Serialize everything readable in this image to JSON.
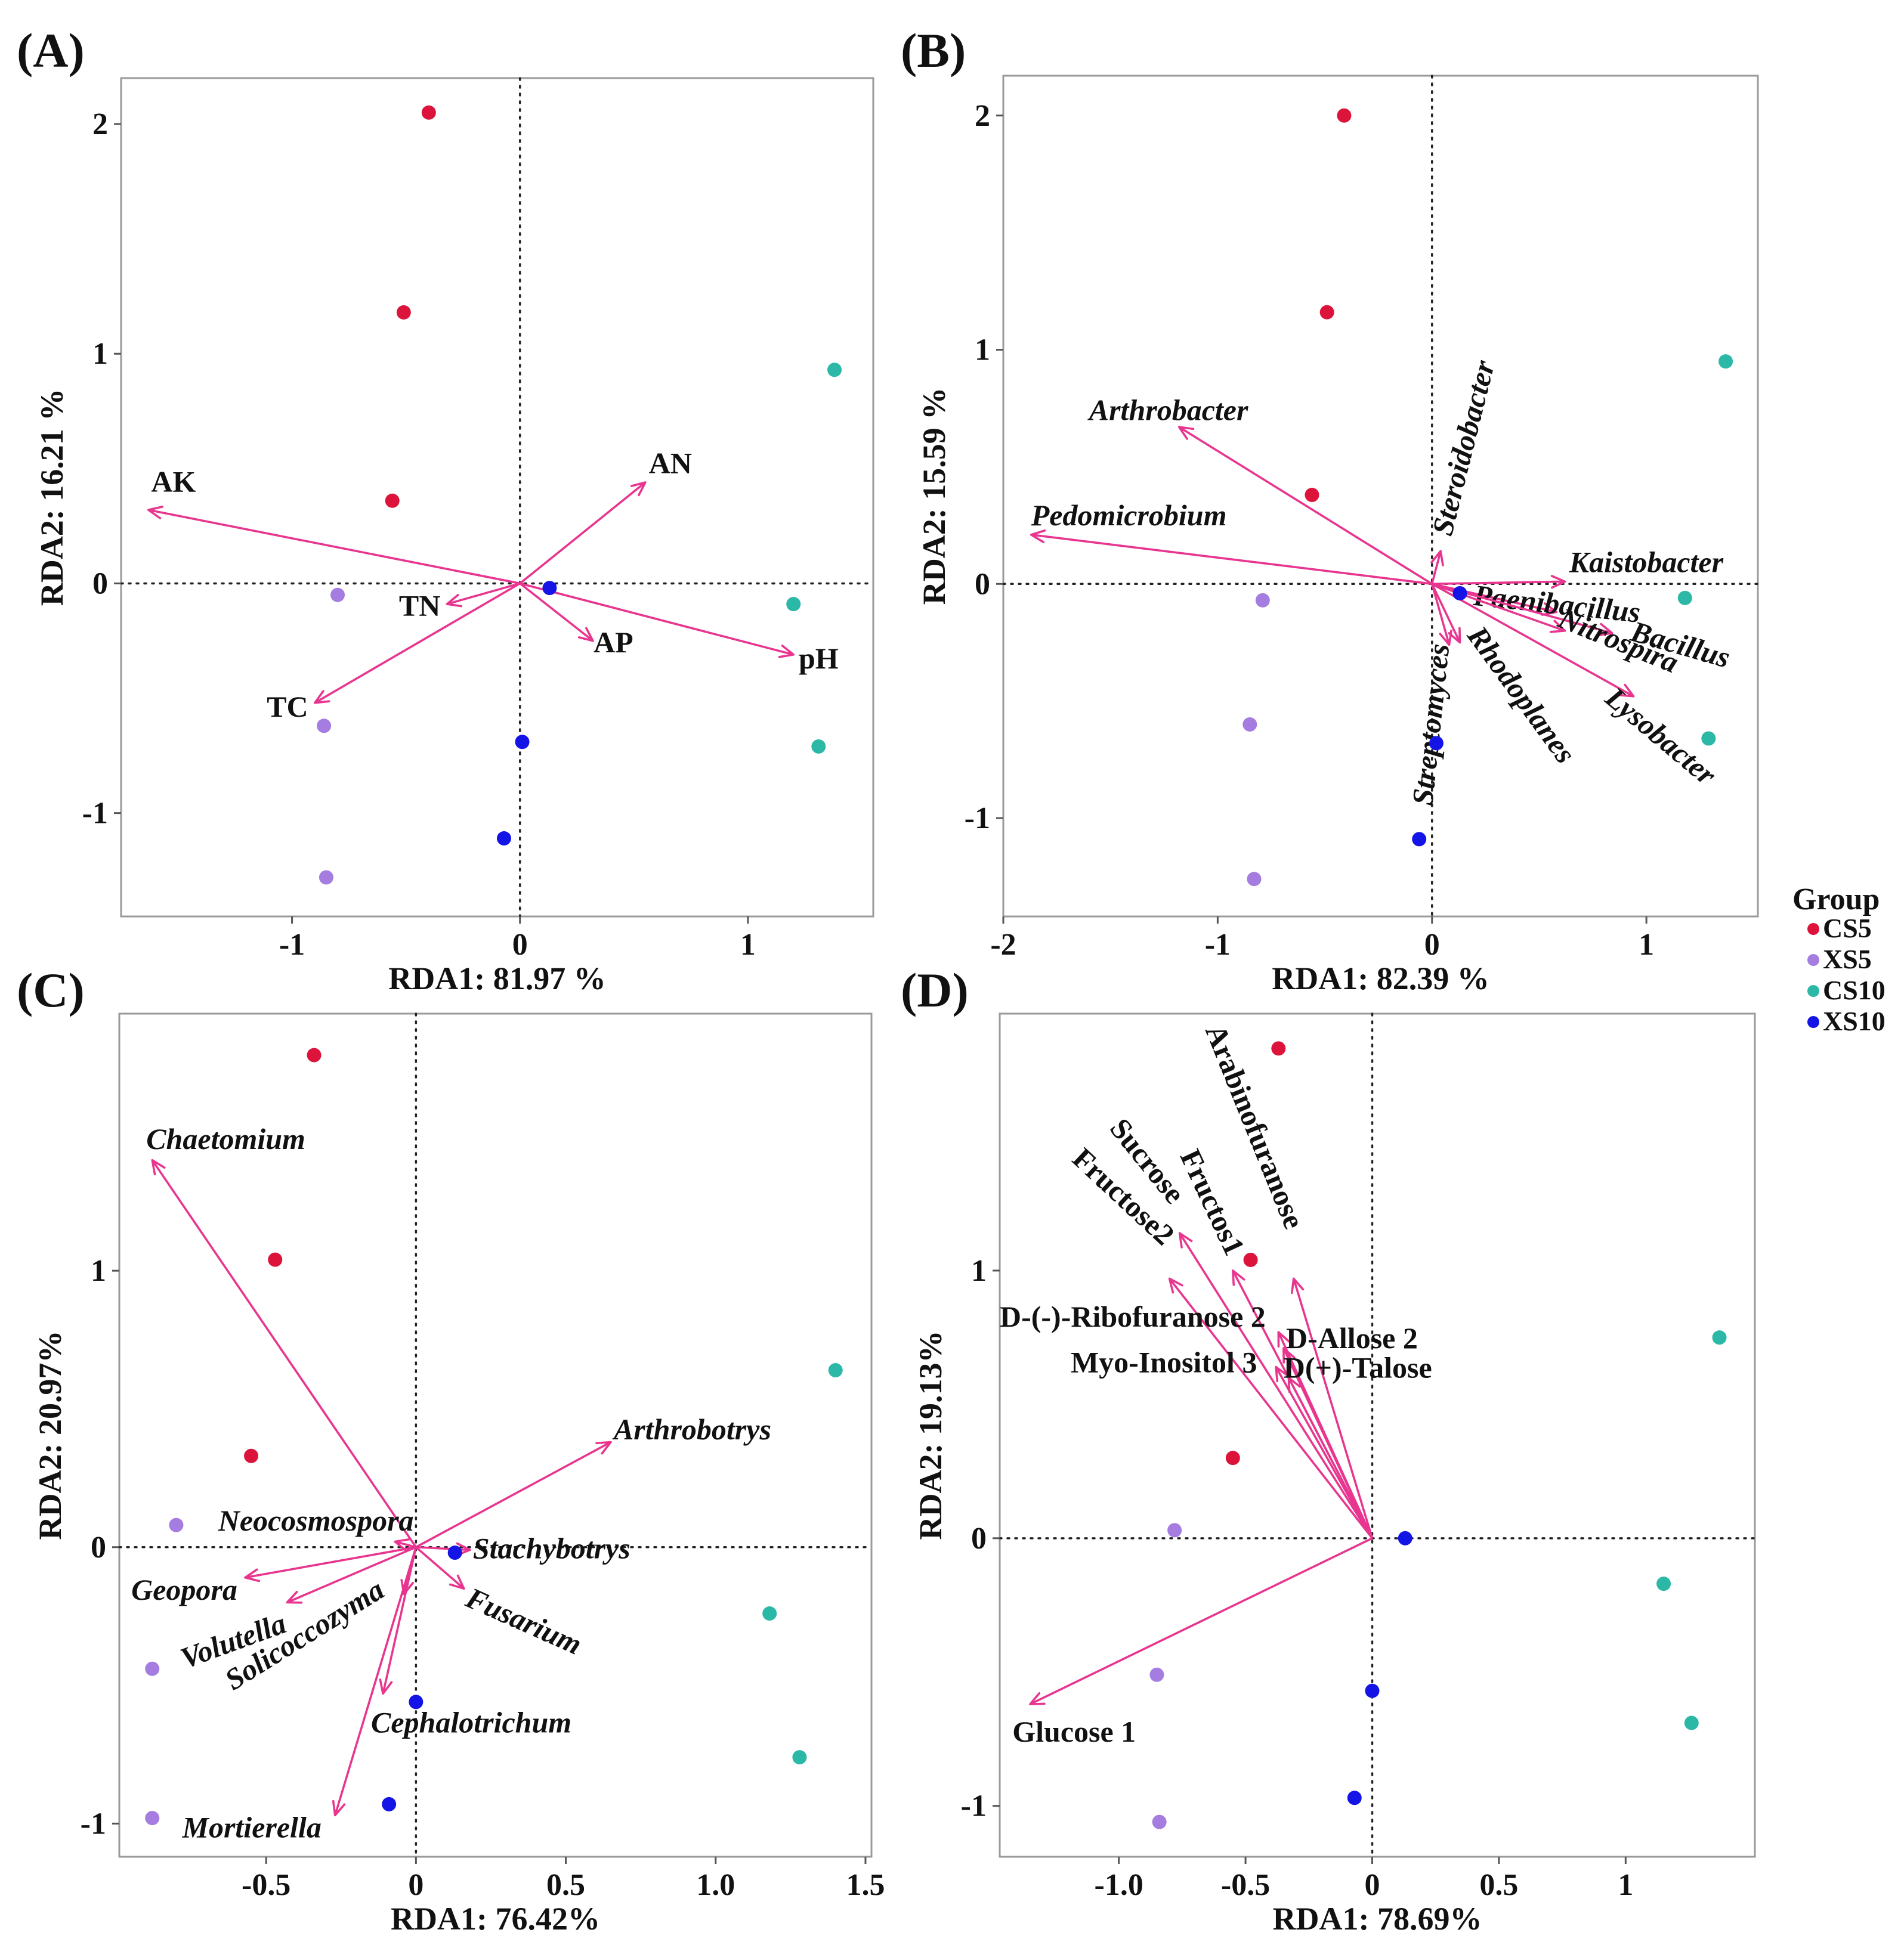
{
  "colors": {
    "CS5": "#dc143c",
    "XS5": "#a57ce0",
    "CS10": "#2bb8a7",
    "XS10": "#1414e6",
    "arrow": "#e8358f"
  },
  "legend": {
    "title": "Group",
    "placement": "right",
    "items": [
      {
        "label": "CS5",
        "group": "CS5"
      },
      {
        "label": "XS5",
        "group": "XS5"
      },
      {
        "label": "CS10",
        "group": "CS10"
      },
      {
        "label": "XS10",
        "group": "XS10"
      }
    ]
  },
  "chart_data": [
    {
      "type": "scatter",
      "panel": "(A)",
      "xlabel": "RDA1: 81.97 %",
      "ylabel": "RDA2: 16.21 %",
      "xlim": [
        -1.75,
        1.55
      ],
      "ylim": [
        -1.45,
        2.2
      ],
      "xticks": [
        {
          "value": -1,
          "label": "-1"
        },
        {
          "value": 0,
          "label": "0"
        },
        {
          "value": 1,
          "label": "1"
        }
      ],
      "yticks": [
        {
          "value": -1,
          "label": "-1"
        },
        {
          "value": 0,
          "label": "0"
        },
        {
          "value": 1,
          "label": "1"
        },
        {
          "value": 2,
          "label": "2"
        }
      ],
      "points": [
        {
          "group": "CS5",
          "x": -0.4,
          "y": 2.05
        },
        {
          "group": "CS5",
          "x": -0.51,
          "y": 1.18
        },
        {
          "group": "CS5",
          "x": -0.56,
          "y": 0.36
        },
        {
          "group": "XS5",
          "x": -0.8,
          "y": -0.05
        },
        {
          "group": "XS5",
          "x": -0.86,
          "y": -0.62
        },
        {
          "group": "XS5",
          "x": -0.85,
          "y": -1.28
        },
        {
          "group": "CS10",
          "x": 1.38,
          "y": 0.93
        },
        {
          "group": "CS10",
          "x": 1.2,
          "y": -0.09
        },
        {
          "group": "CS10",
          "x": 1.31,
          "y": -0.71
        },
        {
          "group": "XS10",
          "x": 0.13,
          "y": -0.02
        },
        {
          "group": "XS10",
          "x": 0.01,
          "y": -0.69
        },
        {
          "group": "XS10",
          "x": -0.07,
          "y": -1.11
        }
      ],
      "arrows": [
        {
          "label": "AK",
          "x": -1.63,
          "y": 0.32,
          "lx": -1.52,
          "ly": 0.4,
          "anchor": "middle",
          "italic": false
        },
        {
          "label": "AN",
          "x": 0.55,
          "y": 0.44,
          "lx": 0.66,
          "ly": 0.48,
          "anchor": "middle",
          "italic": false
        },
        {
          "label": "TN",
          "x": -0.32,
          "y": -0.09,
          "lx": -0.44,
          "ly": -0.14,
          "anchor": "middle",
          "italic": false
        },
        {
          "label": "AP",
          "x": 0.32,
          "y": -0.25,
          "lx": 0.41,
          "ly": -0.3,
          "anchor": "middle",
          "italic": false
        },
        {
          "label": "pH",
          "x": 1.2,
          "y": -0.31,
          "lx": 1.31,
          "ly": -0.37,
          "anchor": "middle",
          "italic": false
        },
        {
          "label": "TC",
          "x": -0.9,
          "y": -0.52,
          "lx": -1.02,
          "ly": -0.58,
          "anchor": "middle",
          "italic": false
        }
      ]
    },
    {
      "type": "scatter",
      "panel": "(B)",
      "xlabel": "RDA1: 82.39 %",
      "ylabel": "RDA2: 15.59 %",
      "xlim": [
        -2.0,
        1.52
      ],
      "ylim": [
        -1.42,
        2.17
      ],
      "xticks": [
        {
          "value": -2,
          "label": "-2"
        },
        {
          "value": -1,
          "label": "-1"
        },
        {
          "value": 0,
          "label": "0"
        },
        {
          "value": 1,
          "label": "1"
        }
      ],
      "yticks": [
        {
          "value": -1,
          "label": "-1"
        },
        {
          "value": 0,
          "label": "0"
        },
        {
          "value": 1,
          "label": "1"
        },
        {
          "value": 2,
          "label": "2"
        }
      ],
      "points": [
        {
          "group": "CS5",
          "x": -0.41,
          "y": 2.0
        },
        {
          "group": "CS5",
          "x": -0.49,
          "y": 1.16
        },
        {
          "group": "CS5",
          "x": -0.56,
          "y": 0.38
        },
        {
          "group": "XS5",
          "x": -0.79,
          "y": -0.07
        },
        {
          "group": "XS5",
          "x": -0.85,
          "y": -0.6
        },
        {
          "group": "XS5",
          "x": -0.83,
          "y": -1.26
        },
        {
          "group": "CS10",
          "x": 1.37,
          "y": 0.95
        },
        {
          "group": "CS10",
          "x": 1.18,
          "y": -0.06
        },
        {
          "group": "CS10",
          "x": 1.29,
          "y": -0.66
        },
        {
          "group": "XS10",
          "x": 0.13,
          "y": -0.04
        },
        {
          "group": "XS10",
          "x": 0.02,
          "y": -0.68
        },
        {
          "group": "XS10",
          "x": -0.06,
          "y": -1.09
        }
      ],
      "arrows": [
        {
          "label": "Arthrobacter",
          "x": -1.18,
          "y": 0.67,
          "lx": -1.6,
          "ly": 0.7,
          "anchor": "start",
          "italic": true
        },
        {
          "label": "Pedomicrobium",
          "x": -1.87,
          "y": 0.21,
          "lx": -1.87,
          "ly": 0.25,
          "anchor": "start",
          "italic": true
        },
        {
          "label": "Steroidobacter",
          "x": 0.04,
          "y": 0.14,
          "lx": 0.09,
          "ly": 0.2,
          "anchor": "start",
          "italic": true,
          "rot": -76
        },
        {
          "label": "Kaistobacter",
          "x": 0.62,
          "y": 0.01,
          "lx": 0.64,
          "ly": 0.05,
          "anchor": "start",
          "italic": true
        },
        {
          "label": "Paenibacillus",
          "x": 0.58,
          "y": -0.12,
          "lx": 0.19,
          "ly": -0.09,
          "anchor": "start",
          "italic": true,
          "rot": 6
        },
        {
          "label": "Bacillus",
          "x": 0.84,
          "y": -0.21,
          "lx": 0.92,
          "ly": -0.24,
          "anchor": "start",
          "italic": true,
          "rot": 16
        },
        {
          "label": "Nitrospira",
          "x": 0.62,
          "y": -0.2,
          "lx": 0.58,
          "ly": -0.18,
          "anchor": "start",
          "italic": true,
          "rot": 22
        },
        {
          "label": "Lysobacter",
          "x": 0.94,
          "y": -0.48,
          "lx": 0.8,
          "ly": -0.5,
          "anchor": "start",
          "italic": true,
          "rot": 40
        },
        {
          "label": "Rhodoplanes",
          "x": 0.13,
          "y": -0.25,
          "lx": 0.16,
          "ly": -0.22,
          "anchor": "start",
          "italic": true,
          "rot": 54
        },
        {
          "label": "Streptomyces",
          "x": 0.08,
          "y": -0.26,
          "lx": 0.08,
          "ly": -0.26,
          "anchor": "end",
          "italic": true,
          "rot": -84
        }
      ]
    },
    {
      "type": "scatter",
      "panel": "(C)",
      "xlabel": "RDA1: 76.42%",
      "ylabel": "RDA2: 20.97%",
      "xlim": [
        -0.99,
        1.52
      ],
      "ylim": [
        -1.12,
        1.93
      ],
      "xticks": [
        {
          "value": -0.5,
          "label": "-0.5"
        },
        {
          "value": 0,
          "label": "0"
        },
        {
          "value": 0.5,
          "label": "0.5"
        },
        {
          "value": 1.0,
          "label": "1.0"
        },
        {
          "value": 1.5,
          "label": "1.5"
        }
      ],
      "yticks": [
        {
          "value": -1,
          "label": "-1"
        },
        {
          "value": 0,
          "label": "0"
        },
        {
          "value": 1,
          "label": "1"
        }
      ],
      "points": [
        {
          "group": "CS5",
          "x": -0.34,
          "y": 1.78
        },
        {
          "group": "CS5",
          "x": -0.47,
          "y": 1.04
        },
        {
          "group": "CS5",
          "x": -0.55,
          "y": 0.33
        },
        {
          "group": "XS5",
          "x": -0.8,
          "y": 0.08
        },
        {
          "group": "XS5",
          "x": -0.88,
          "y": -0.44
        },
        {
          "group": "XS5",
          "x": -0.88,
          "y": -0.98
        },
        {
          "group": "CS10",
          "x": 1.4,
          "y": 0.64
        },
        {
          "group": "CS10",
          "x": 1.18,
          "y": -0.24
        },
        {
          "group": "CS10",
          "x": 1.28,
          "y": -0.76
        },
        {
          "group": "XS10",
          "x": 0.13,
          "y": -0.02
        },
        {
          "group": "XS10",
          "x": 0.0,
          "y": -0.56
        },
        {
          "group": "XS10",
          "x": -0.09,
          "y": -0.93
        }
      ],
      "arrows": [
        {
          "label": "Chaetomium",
          "x": -0.88,
          "y": 1.4,
          "lx": -0.9,
          "ly": 1.44,
          "anchor": "start",
          "italic": true
        },
        {
          "label": "Arthrobotrys",
          "x": 0.65,
          "y": 0.38,
          "lx": 0.66,
          "ly": 0.39,
          "anchor": "start",
          "italic": true
        },
        {
          "label": "Neocosmospora",
          "x": -0.07,
          "y": 0.02,
          "lx": -0.66,
          "ly": 0.06,
          "anchor": "start",
          "italic": true
        },
        {
          "label": "Stachybotrys",
          "x": 0.18,
          "y": -0.01,
          "lx": 0.19,
          "ly": -0.04,
          "anchor": "start",
          "italic": true
        },
        {
          "label": "Geopora",
          "x": -0.57,
          "y": -0.11,
          "lx": -0.95,
          "ly": -0.19,
          "anchor": "start",
          "italic": true
        },
        {
          "label": "Fusarium",
          "x": 0.16,
          "y": -0.15,
          "lx": 0.16,
          "ly": -0.21,
          "anchor": "start",
          "italic": true,
          "rot": 24
        },
        {
          "label": "Volutella",
          "x": -0.43,
          "y": -0.2,
          "lx": -0.77,
          "ly": -0.44,
          "anchor": "start",
          "italic": true,
          "rot": -20
        },
        {
          "label": "Solicoccozyma",
          "x": -0.04,
          "y": -0.17,
          "lx": -0.61,
          "ly": -0.52,
          "anchor": "start",
          "italic": true,
          "rot": -32
        },
        {
          "label": "Cephalotrichum",
          "x": -0.11,
          "y": -0.53,
          "lx": -0.15,
          "ly": -0.67,
          "anchor": "start",
          "italic": true
        },
        {
          "label": "Mortierella",
          "x": -0.27,
          "y": -0.97,
          "lx": -0.78,
          "ly": -1.05,
          "anchor": "start",
          "italic": true
        }
      ]
    },
    {
      "type": "scatter",
      "panel": "(D)",
      "xlabel": "RDA1: 78.69%",
      "ylabel": "RDA2: 19.13%",
      "xlim": [
        -1.47,
        1.51
      ],
      "ylim": [
        -1.19,
        1.96
      ],
      "xticks": [
        {
          "value": -1.0,
          "label": "-1.0"
        },
        {
          "value": -0.5,
          "label": "-0.5"
        },
        {
          "value": 0,
          "label": "0"
        },
        {
          "value": 0.5,
          "label": "0.5"
        },
        {
          "value": 1,
          "label": "1"
        }
      ],
      "yticks": [
        {
          "value": -1,
          "label": "-1"
        },
        {
          "value": 0,
          "label": "0"
        },
        {
          "value": 1,
          "label": "1"
        }
      ],
      "points": [
        {
          "group": "CS5",
          "x": -0.37,
          "y": 1.83
        },
        {
          "group": "CS5",
          "x": -0.48,
          "y": 1.04
        },
        {
          "group": "CS5",
          "x": -0.55,
          "y": 0.3
        },
        {
          "group": "XS5",
          "x": -0.78,
          "y": 0.03
        },
        {
          "group": "XS5",
          "x": -0.85,
          "y": -0.51
        },
        {
          "group": "XS5",
          "x": -0.84,
          "y": -1.06
        },
        {
          "group": "CS10",
          "x": 1.37,
          "y": 0.75
        },
        {
          "group": "CS10",
          "x": 1.15,
          "y": -0.17
        },
        {
          "group": "CS10",
          "x": 1.26,
          "y": -0.69
        },
        {
          "group": "XS10",
          "x": 0.13,
          "y": 0.0
        },
        {
          "group": "XS10",
          "x": 0.0,
          "y": -0.57
        },
        {
          "group": "XS10",
          "x": -0.07,
          "y": -0.97
        }
      ],
      "arrows": [
        {
          "label": "Arabinofuranose",
          "x": -0.31,
          "y": 0.97,
          "lx": -0.66,
          "ly": 1.9,
          "anchor": "start",
          "italic": false,
          "rot": 68
        },
        {
          "label": "Sucrose",
          "x": -0.76,
          "y": 1.14,
          "lx": -1.04,
          "ly": 1.53,
          "anchor": "start",
          "italic": false,
          "rot": 51
        },
        {
          "label": "Fructos1",
          "x": -0.55,
          "y": 1.0,
          "lx": -0.76,
          "ly": 1.43,
          "anchor": "start",
          "italic": false,
          "rot": 65
        },
        {
          "label": "Fructose2",
          "x": -0.8,
          "y": 0.97,
          "lx": -1.19,
          "ly": 1.41,
          "anchor": "start",
          "italic": false,
          "rot": 43
        },
        {
          "label": "D-(-)-Ribofuranose 2",
          "x": -0.37,
          "y": 0.77,
          "lx": -1.47,
          "ly": 0.79,
          "anchor": "start",
          "italic": false
        },
        {
          "label": "D-Allose 2",
          "x": -0.35,
          "y": 0.71,
          "lx": -0.34,
          "ly": 0.71,
          "anchor": "start",
          "italic": false
        },
        {
          "label": "Myo-Inositol 3",
          "x": -0.38,
          "y": 0.64,
          "lx": -1.19,
          "ly": 0.62,
          "anchor": "start",
          "italic": false
        },
        {
          "label": "D(+)-Talose",
          "x": -0.33,
          "y": 0.6,
          "lx": -0.35,
          "ly": 0.6,
          "anchor": "start",
          "italic": false
        },
        {
          "label": "Glucose 1",
          "x": -1.35,
          "y": -0.62,
          "lx": -1.42,
          "ly": -0.76,
          "anchor": "start",
          "italic": false
        }
      ]
    }
  ]
}
